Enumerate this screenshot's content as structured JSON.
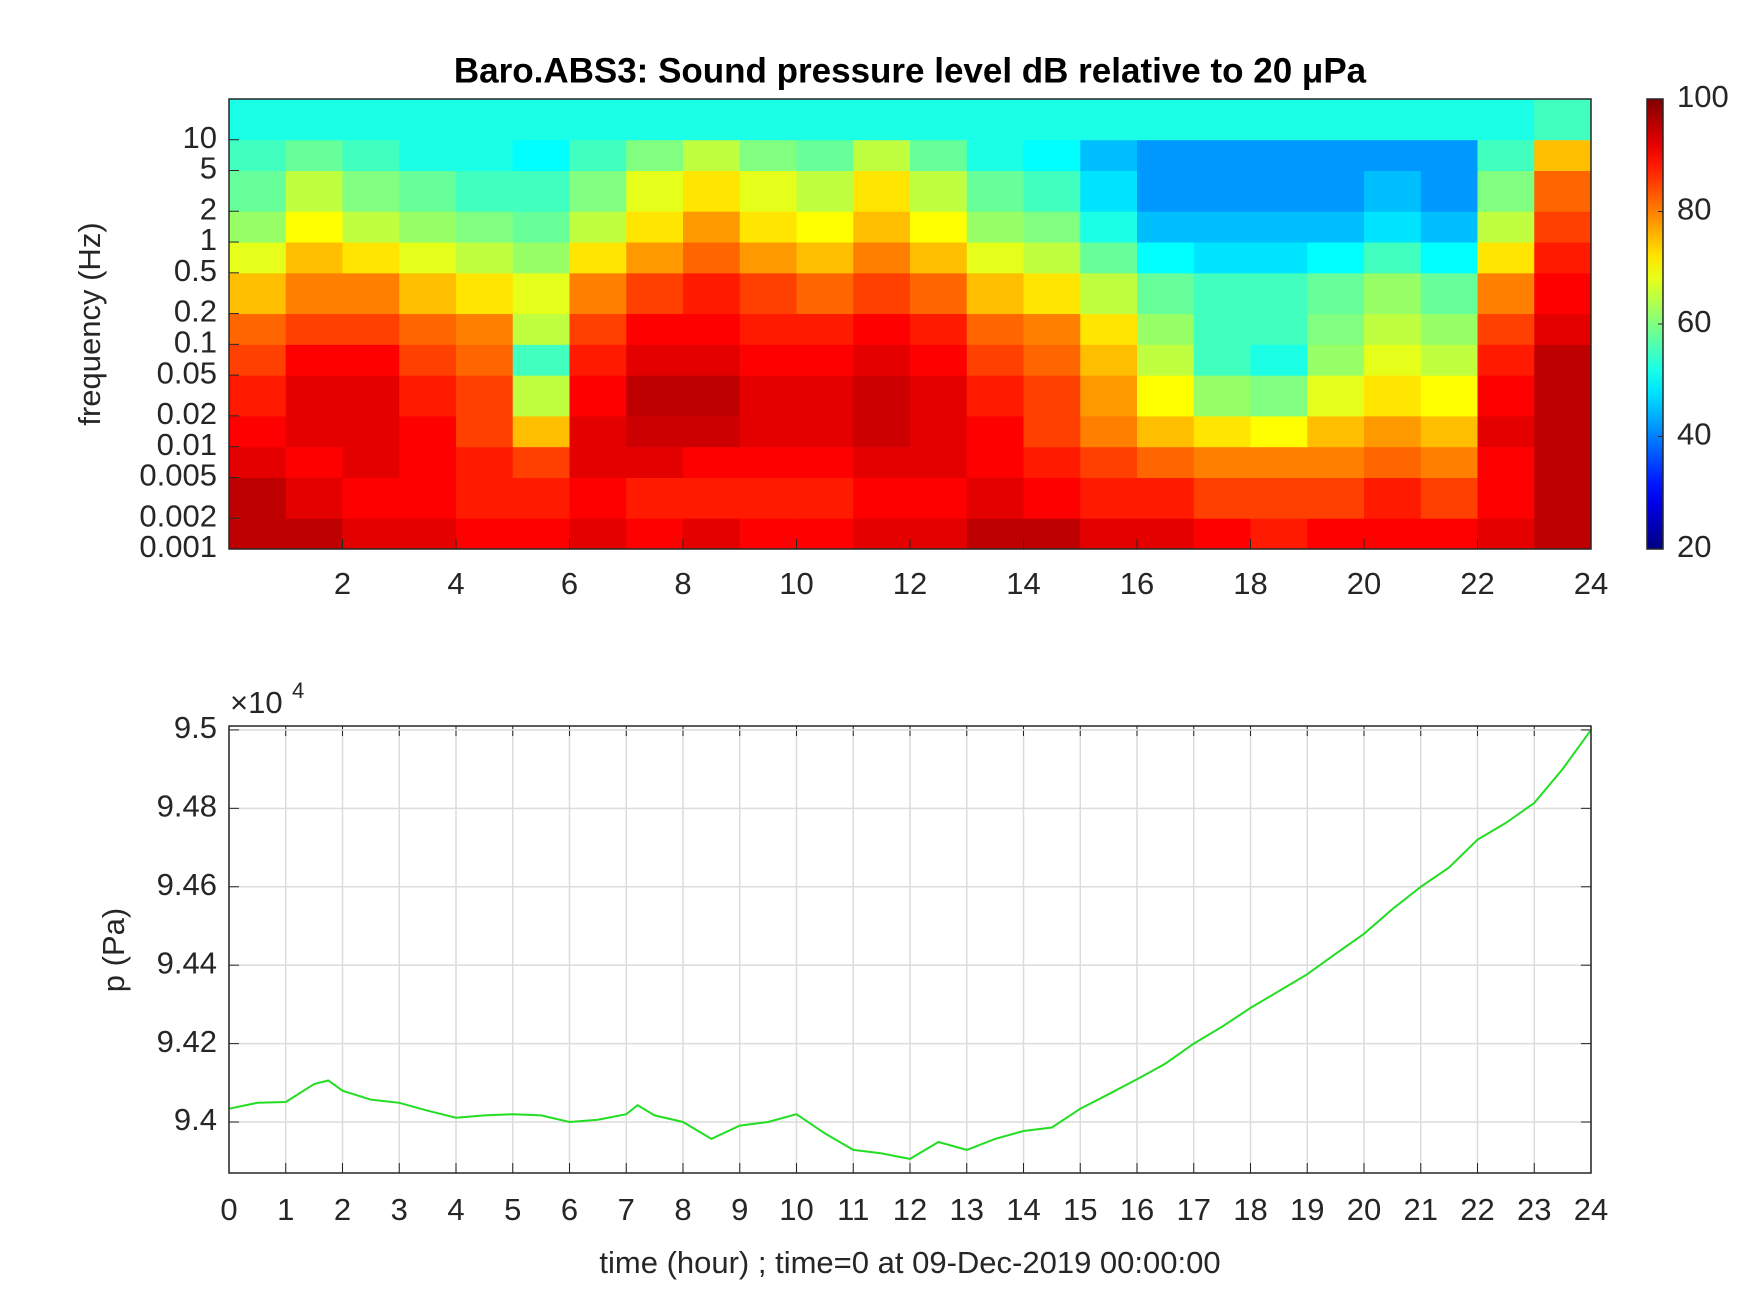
{
  "chart_data": [
    {
      "type": "heatmap",
      "title": "Baro.ABS3: Sound pressure level dB relative to 20 μPa",
      "ylabel": "frequency (Hz)",
      "y_log": true,
      "xlim": [
        0,
        24
      ],
      "xticks": [
        2,
        4,
        6,
        8,
        10,
        12,
        14,
        16,
        18,
        20,
        22,
        24
      ],
      "ylim": [
        0.001,
        25
      ],
      "yticks": [
        0.001,
        0.002,
        0.005,
        0.01,
        0.02,
        0.05,
        0.1,
        0.2,
        0.5,
        1,
        2,
        5,
        10
      ],
      "clim": [
        20,
        100
      ],
      "cticks": [
        20,
        40,
        60,
        80,
        100
      ],
      "colormap": "jet",
      "x_edges": [
        0,
        1,
        2,
        3,
        4,
        5,
        6,
        7,
        8,
        9,
        10,
        11,
        12,
        13,
        14,
        15,
        16,
        17,
        18,
        19,
        20,
        21,
        22,
        23,
        24
      ],
      "y_edges": [
        0.001,
        0.002,
        0.005,
        0.01,
        0.02,
        0.05,
        0.1,
        0.2,
        0.5,
        1,
        2,
        5,
        10,
        25
      ],
      "z": [
        [
          95,
          95,
          92,
          92,
          90,
          90,
          92,
          90,
          92,
          90,
          90,
          92,
          92,
          95,
          95,
          92,
          92,
          90,
          88,
          90,
          90,
          90,
          92,
          95
        ],
        [
          95,
          92,
          90,
          90,
          88,
          88,
          90,
          88,
          88,
          88,
          88,
          90,
          90,
          92,
          90,
          88,
          88,
          85,
          85,
          85,
          88,
          85,
          90,
          95
        ],
        [
          92,
          90,
          92,
          90,
          88,
          85,
          92,
          92,
          90,
          90,
          90,
          92,
          92,
          90,
          88,
          85,
          82,
          80,
          80,
          80,
          82,
          80,
          90,
          95
        ],
        [
          90,
          92,
          92,
          90,
          85,
          75,
          92,
          94,
          94,
          92,
          92,
          94,
          92,
          90,
          85,
          80,
          75,
          72,
          70,
          75,
          78,
          75,
          92,
          95
        ],
        [
          88,
          92,
          92,
          88,
          85,
          65,
          90,
          95,
          95,
          92,
          92,
          94,
          92,
          88,
          85,
          78,
          70,
          62,
          60,
          68,
          72,
          70,
          90,
          95
        ],
        [
          85,
          90,
          90,
          85,
          82,
          55,
          88,
          92,
          92,
          90,
          90,
          92,
          90,
          85,
          82,
          75,
          65,
          55,
          52,
          62,
          68,
          65,
          88,
          95
        ],
        [
          82,
          85,
          85,
          82,
          80,
          65,
          85,
          90,
          90,
          88,
          88,
          90,
          88,
          82,
          80,
          72,
          62,
          55,
          55,
          60,
          65,
          62,
          85,
          92
        ],
        [
          75,
          80,
          80,
          75,
          72,
          68,
          80,
          85,
          88,
          85,
          82,
          85,
          82,
          75,
          72,
          65,
          58,
          55,
          55,
          58,
          62,
          58,
          80,
          90
        ],
        [
          68,
          75,
          72,
          68,
          65,
          62,
          72,
          78,
          82,
          78,
          75,
          80,
          75,
          68,
          65,
          58,
          50,
          48,
          48,
          50,
          55,
          50,
          72,
          88
        ],
        [
          62,
          70,
          65,
          62,
          60,
          58,
          65,
          72,
          78,
          72,
          70,
          75,
          70,
          62,
          60,
          52,
          45,
          45,
          45,
          45,
          48,
          45,
          65,
          85
        ],
        [
          58,
          65,
          60,
          58,
          55,
          55,
          60,
          68,
          72,
          68,
          65,
          72,
          65,
          58,
          55,
          48,
          42,
          42,
          42,
          42,
          45,
          42,
          60,
          82
        ],
        [
          55,
          58,
          55,
          52,
          52,
          50,
          55,
          60,
          65,
          60,
          58,
          65,
          58,
          52,
          50,
          45,
          42,
          42,
          42,
          42,
          42,
          42,
          55,
          75
        ],
        [
          52,
          52,
          52,
          52,
          52,
          52,
          52,
          52,
          52,
          52,
          52,
          52,
          52,
          52,
          52,
          52,
          52,
          52,
          52,
          52,
          52,
          52,
          52,
          55
        ]
      ]
    },
    {
      "type": "line",
      "xlabel": "time (hour) ; time=0 at 09-Dec-2019 00:00:00",
      "ylabel": "p (Pa)",
      "y_multiplier": {
        "base": "×10",
        "exponent": "4"
      },
      "grid": true,
      "color": "#22dd22",
      "xlim": [
        0,
        24
      ],
      "xticks": [
        0,
        1,
        2,
        3,
        4,
        5,
        6,
        7,
        8,
        9,
        10,
        11,
        12,
        13,
        14,
        15,
        16,
        17,
        18,
        19,
        20,
        21,
        22,
        23,
        24
      ],
      "ylim": [
        93870,
        95010
      ],
      "yticks": [
        {
          "value": 94000,
          "label": "9.4"
        },
        {
          "value": 94200,
          "label": "9.42"
        },
        {
          "value": 94400,
          "label": "9.44"
        },
        {
          "value": 94600,
          "label": "9.46"
        },
        {
          "value": 94800,
          "label": "9.48"
        },
        {
          "value": 95000,
          "label": "9.5"
        }
      ],
      "x": [
        0,
        0.5,
        1,
        1.5,
        1.75,
        2,
        2.5,
        3,
        3.5,
        4,
        4.5,
        5,
        5.5,
        6,
        6.5,
        7,
        7.2,
        7.5,
        8,
        8.5,
        9,
        9.5,
        10,
        10.5,
        11,
        11.5,
        12,
        12.5,
        13,
        13.5,
        14,
        14.5,
        15,
        15.5,
        16,
        16.5,
        17,
        17.5,
        18,
        18.5,
        19,
        19.5,
        20,
        20.5,
        21,
        21.5,
        22,
        22.5,
        23,
        23.5,
        24
      ],
      "values": [
        94034,
        94049,
        94051,
        94097,
        94106,
        94080,
        94057,
        94049,
        94029,
        94011,
        94017,
        94020,
        94017,
        94000,
        94006,
        94020,
        94043,
        94017,
        94000,
        93957,
        93991,
        94000,
        94020,
        93971,
        93929,
        93920,
        93906,
        93949,
        93929,
        93957,
        93977,
        93986,
        94034,
        94071,
        94109,
        94149,
        94200,
        94243,
        94291,
        94334,
        94377,
        94429,
        94480,
        94543,
        94600,
        94649,
        94720,
        94763,
        94814,
        94900,
        95000
      ]
    }
  ]
}
